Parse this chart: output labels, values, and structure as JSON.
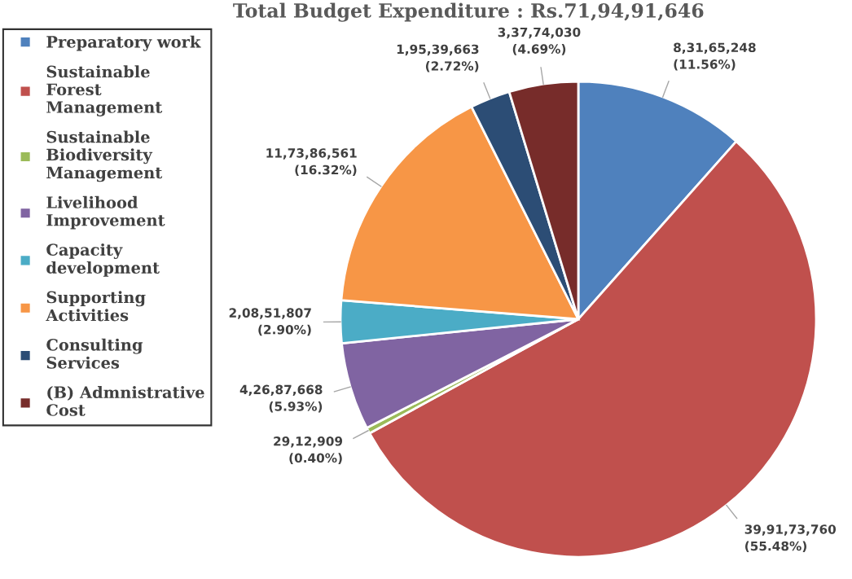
{
  "chart_data": {
    "type": "pie",
    "title": "Total Budget Expenditure : Rs.71,94,91,646",
    "categories": [
      "Preparatory work",
      "Sustainable\nForest\nManagement",
      "Sustainable\nBiodiversity\nManagement",
      "Livelihood\nImprovement",
      "Capacity\ndevelopment",
      "Supporting\nActivities",
      "Consulting\nServices",
      "(B) Admnistrative\nCost"
    ],
    "values": [
      83165248,
      399173760,
      2912909,
      42687668,
      20851807,
      117386561,
      19539663,
      33774030
    ],
    "value_labels": [
      "8,31,65,248\n(11.56%)",
      "39,91,73,760\n(55.48%)",
      "29,12,909\n(0.40%)",
      "4,26,87,668\n(5.93%)",
      "2,08,51,807\n(2.90%)",
      "11,73,86,561\n(16.32%)",
      "1,95,39,663\n(2.72%)",
      "3,37,74,030\n(4.69%)"
    ],
    "colors": [
      "#4f81bd",
      "#c0504d",
      "#9bbb59",
      "#8064a2",
      "#4bacc6",
      "#f79646",
      "#2c4d75",
      "#772c2a"
    ],
    "legend": "left"
  }
}
